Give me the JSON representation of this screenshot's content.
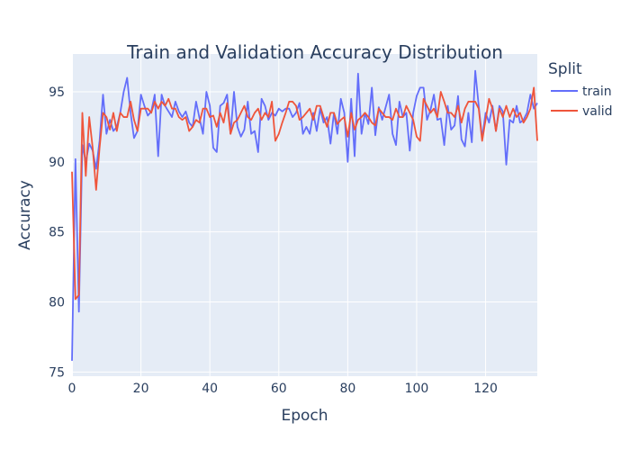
{
  "chart_data": {
    "type": "line",
    "title": "Train and Validation Accuracy Distribution",
    "xlabel": "Epoch",
    "ylabel": "Accuracy",
    "xlim": [
      0,
      135
    ],
    "ylim": [
      74.7,
      97.7
    ],
    "x_ticks": [
      0,
      20,
      40,
      60,
      80,
      100,
      120
    ],
    "y_ticks": [
      75,
      80,
      85,
      90,
      95
    ],
    "grid": true,
    "legend_title": "Split",
    "legend_position": "top-right",
    "series": [
      {
        "name": "train",
        "color": "#636efa",
        "x_start": 0,
        "x_step": 1,
        "values": [
          75.8,
          90.2,
          79.3,
          91.2,
          90.0,
          91.3,
          90.8,
          89.5,
          91.5,
          94.8,
          92.0,
          93.0,
          92.2,
          92.5,
          93.5,
          95.0,
          96.0,
          93.5,
          91.7,
          92.2,
          94.8,
          94.0,
          93.3,
          93.6,
          94.8,
          90.4,
          94.8,
          94.0,
          93.6,
          93.2,
          94.3,
          93.6,
          93.2,
          93.6,
          92.8,
          92.5,
          94.3,
          93.1,
          92.0,
          95.0,
          94.0,
          91.0,
          90.7,
          94.0,
          94.2,
          94.8,
          92.0,
          95.0,
          92.5,
          91.8,
          92.3,
          94.3,
          92.0,
          92.2,
          90.7,
          94.5,
          94.0,
          93.0,
          93.5,
          93.3,
          93.8,
          93.6,
          93.8,
          93.8,
          93.2,
          93.5,
          94.2,
          92.0,
          92.5,
          92.0,
          93.5,
          92.2,
          93.8,
          92.8,
          93.2,
          91.3,
          93.5,
          92.0,
          94.5,
          93.5,
          90.0,
          94.5,
          90.4,
          96.3,
          92.0,
          93.5,
          92.7,
          95.3,
          91.9,
          93.9,
          93.0,
          93.9,
          94.8,
          92.0,
          91.2,
          94.3,
          93.2,
          93.5,
          90.8,
          93.5,
          94.7,
          95.3,
          95.3,
          93.0,
          93.7,
          94.8,
          93.0,
          93.1,
          91.2,
          94.0,
          92.3,
          92.6,
          94.7,
          91.6,
          91.1,
          93.5,
          91.4,
          96.5,
          94.0,
          91.7,
          93.5,
          92.8,
          94.0,
          92.2,
          94.0,
          93.6,
          89.8,
          93.0,
          92.8,
          94.0,
          92.8,
          93.0,
          93.5,
          94.8,
          93.8,
          94.2
        ]
      },
      {
        "name": "valid",
        "color": "#ef553b",
        "x_start": 0,
        "x_step": 1,
        "values": [
          89.3,
          80.2,
          80.5,
          93.5,
          89.0,
          93.2,
          91.0,
          88.0,
          91.0,
          93.5,
          93.2,
          92.3,
          93.5,
          92.2,
          93.5,
          93.2,
          93.2,
          94.3,
          93.0,
          92.2,
          93.8,
          93.8,
          93.8,
          93.5,
          94.3,
          93.8,
          94.3,
          94.0,
          94.5,
          93.8,
          93.8,
          93.2,
          93.0,
          93.2,
          92.2,
          92.5,
          93.0,
          92.8,
          93.8,
          93.8,
          93.2,
          93.3,
          92.5,
          93.5,
          92.8,
          94.2,
          92.0,
          92.8,
          93.0,
          93.5,
          94.0,
          93.2,
          93.0,
          93.5,
          93.8,
          93.0,
          93.5,
          93.2,
          94.3,
          91.5,
          92.0,
          92.8,
          93.5,
          94.3,
          94.3,
          94.0,
          93.0,
          93.2,
          93.5,
          93.8,
          93.0,
          94.0,
          94.0,
          93.2,
          92.5,
          93.5,
          93.5,
          92.7,
          93.0,
          93.2,
          91.8,
          93.5,
          92.3,
          93.0,
          93.2,
          93.5,
          93.2,
          92.8,
          92.6,
          93.8,
          93.5,
          93.2,
          93.2,
          93.0,
          93.8,
          93.2,
          93.2,
          94.0,
          93.5,
          93.0,
          91.8,
          91.5,
          94.5,
          94.0,
          93.5,
          93.8,
          93.2,
          95.0,
          94.3,
          93.5,
          93.5,
          93.2,
          94.0,
          92.8,
          93.8,
          94.3,
          94.3,
          94.3,
          93.8,
          91.5,
          93.0,
          94.5,
          93.8,
          92.2,
          93.8,
          93.2,
          94.0,
          93.2,
          93.8,
          93.2,
          93.5,
          92.8,
          93.2,
          93.8,
          95.3,
          91.5
        ]
      }
    ]
  }
}
